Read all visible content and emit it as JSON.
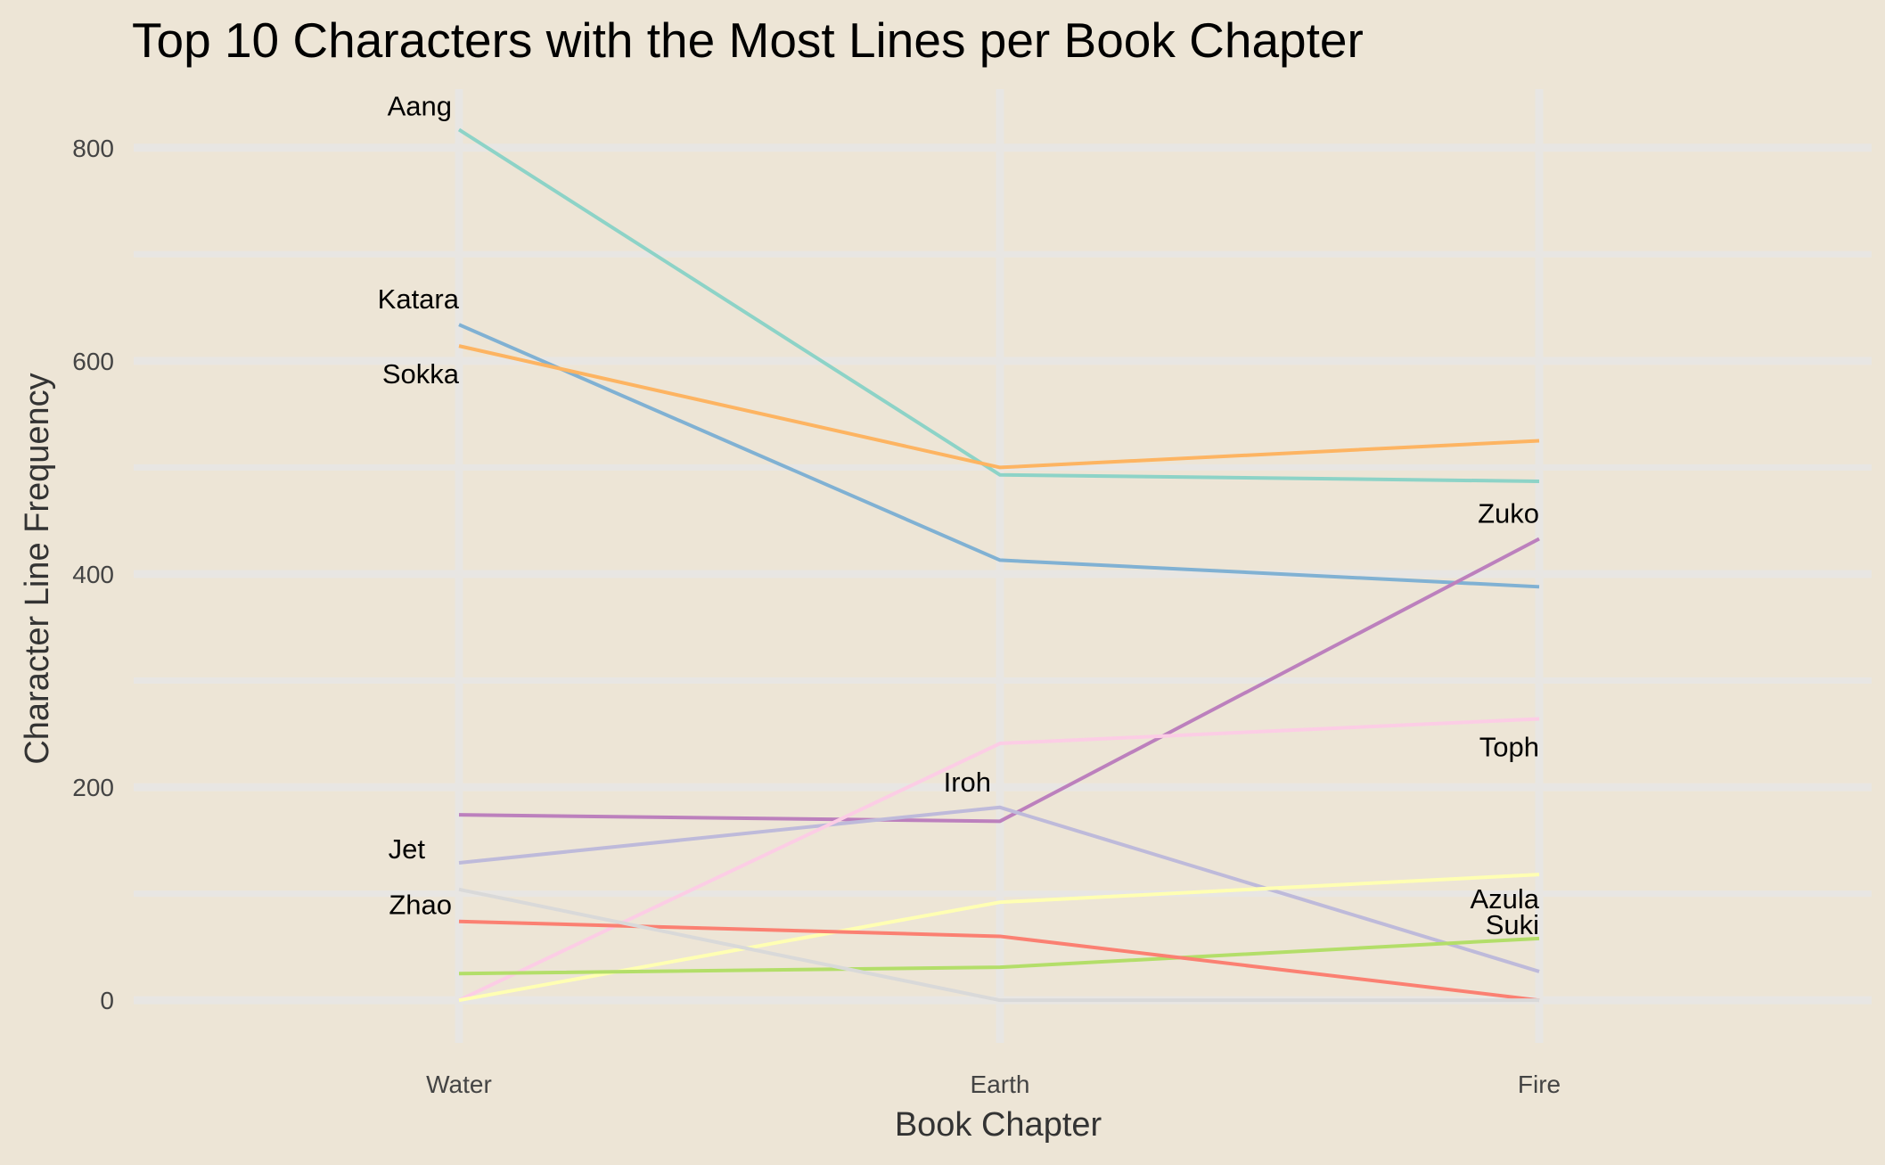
{
  "chart_data": {
    "type": "line",
    "title": "Top 10 Characters with the Most Lines per Book Chapter",
    "xlabel": "Book Chapter",
    "ylabel": "Character Line Frequency",
    "categories": [
      "Water",
      "Earth",
      "Fire"
    ],
    "ylim": [
      -40,
      855
    ],
    "yticks": [
      0,
      200,
      400,
      600,
      800
    ],
    "grid": true,
    "legend": "none (series labelled directly on the lines)",
    "series": [
      {
        "name": "Aang",
        "values": [
          817,
          493,
          487
        ],
        "color": "#8dd3c7",
        "label_at": "Water"
      },
      {
        "name": "Katara",
        "values": [
          634,
          413,
          388
        ],
        "color": "#80b1d3",
        "label_at": "Water"
      },
      {
        "name": "Sokka",
        "values": [
          614,
          500,
          525
        ],
        "color": "#fdb462",
        "label_at": "Water"
      },
      {
        "name": "Zuko",
        "values": [
          174,
          168,
          433
        ],
        "color": "#bc80bd",
        "label_at": "Fire"
      },
      {
        "name": "Iroh",
        "values": [
          129,
          181,
          27
        ],
        "color": "#bebada",
        "label_at": "Earth"
      },
      {
        "name": "Toph",
        "values": [
          0,
          241,
          264
        ],
        "color": "#fccde5",
        "label_at": "Fire"
      },
      {
        "name": "Azula",
        "values": [
          0,
          92,
          118
        ],
        "color": "#ffffb3",
        "label_at": "Fire"
      },
      {
        "name": "Suki",
        "values": [
          25,
          31,
          58
        ],
        "color": "#b3de69",
        "label_at": "Fire"
      },
      {
        "name": "Zhao",
        "values": [
          74,
          60,
          0
        ],
        "color": "#fb8072",
        "label_at": "Water"
      },
      {
        "name": "Jet",
        "values": [
          104,
          0,
          0
        ],
        "color": "#d9d9d9",
        "label_at": "Water"
      }
    ]
  },
  "colors": {
    "background": "#ede5d6",
    "grid": "#e8e6e3"
  }
}
